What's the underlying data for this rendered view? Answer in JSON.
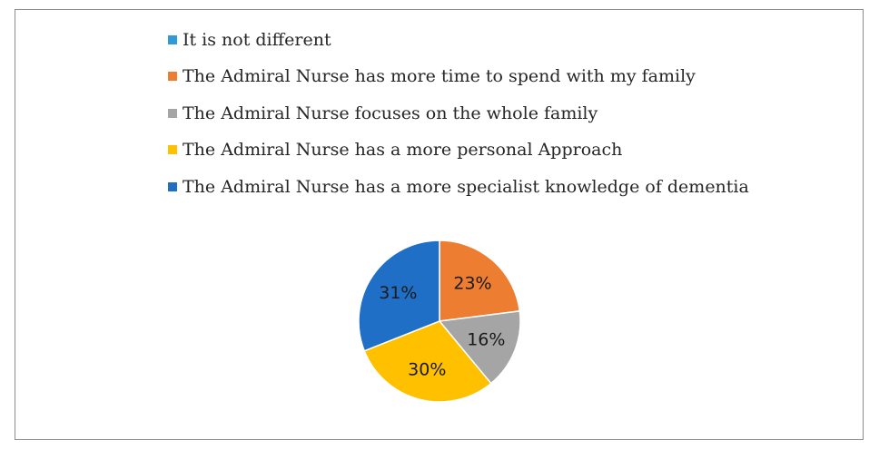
{
  "chart_data": {
    "type": "pie",
    "title": "",
    "legend_position": "top",
    "data_labels_shown": true,
    "slices": [
      {
        "label": "It is not different",
        "value": 0,
        "display": "",
        "color": "#2E9BD8"
      },
      {
        "label": "The Admiral Nurse has more time to spend with my family",
        "value": 23,
        "display": "23%",
        "color": "#ED7D31"
      },
      {
        "label": "The Admiral Nurse focuses on the whole family",
        "value": 16,
        "display": "16%",
        "color": "#A5A5A5"
      },
      {
        "label": "The Admiral Nurse has a more personal Approach",
        "value": 30,
        "display": "30%",
        "color": "#FFC000"
      },
      {
        "label": "The Admiral Nurse has a more specialist knowledge of dementia",
        "value": 31,
        "display": "31%",
        "color": "#1F6FC6"
      }
    ]
  }
}
